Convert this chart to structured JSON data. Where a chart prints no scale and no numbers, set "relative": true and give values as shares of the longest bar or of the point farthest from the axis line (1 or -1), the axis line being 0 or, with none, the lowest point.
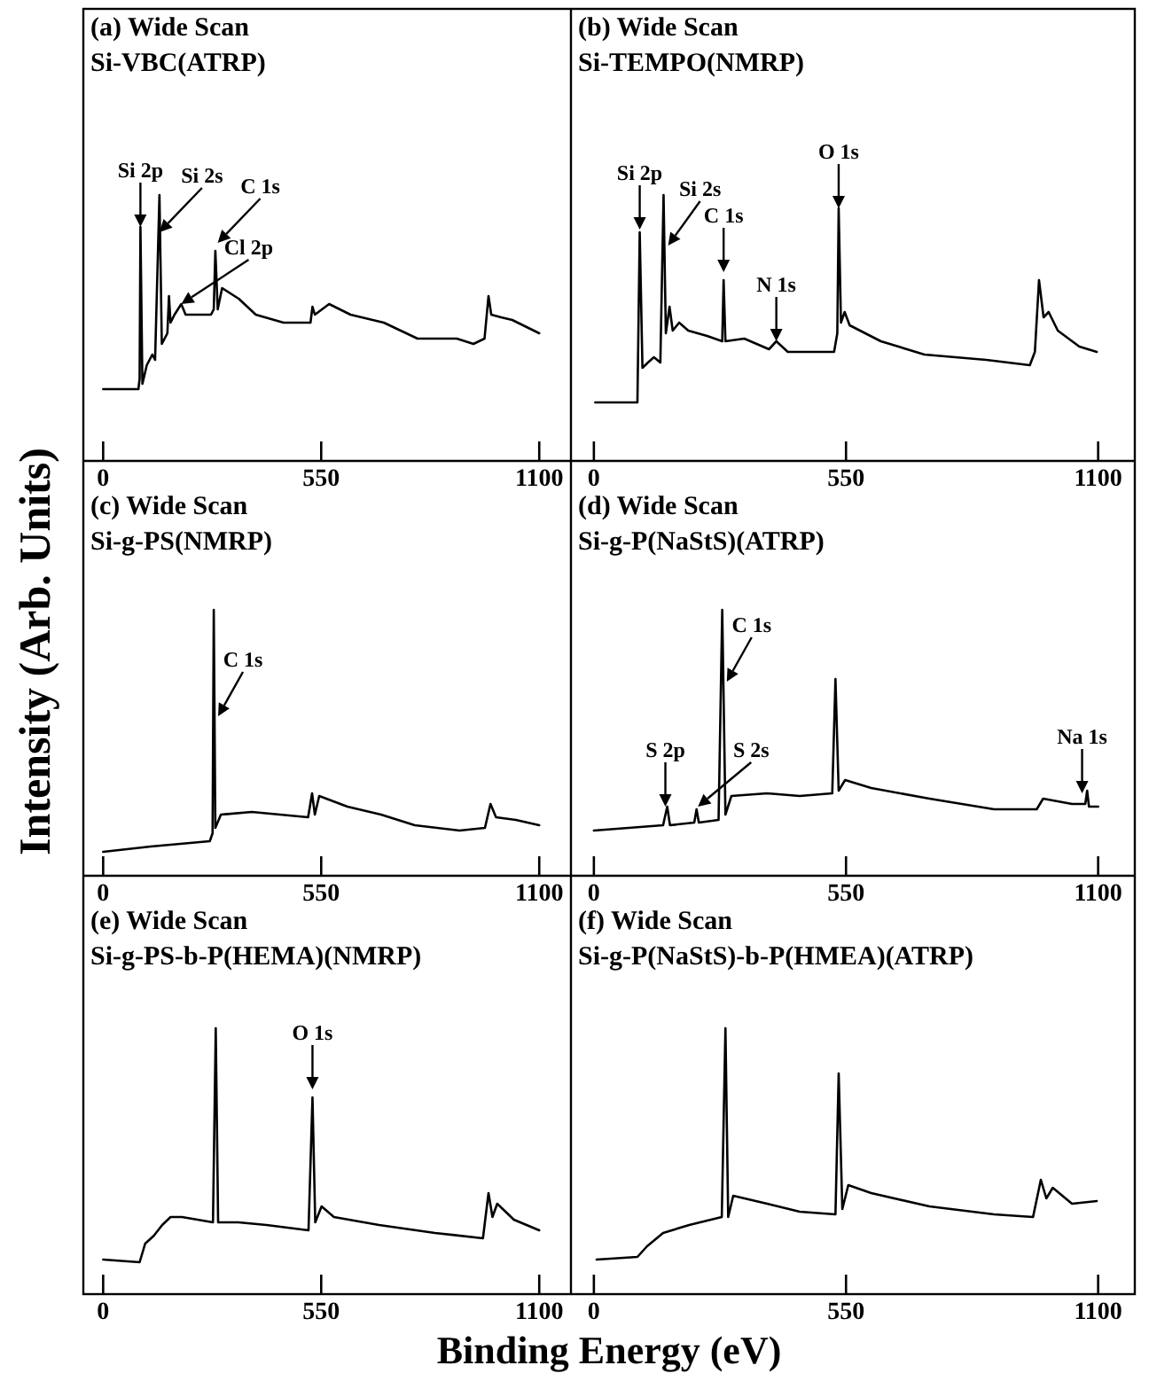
{
  "chart_data": [
    {
      "type": "line",
      "title": "(a) Wide Scan",
      "subtitle": "Si-VBC(ATRP)",
      "ylabel": "Intensity (Arb. Units)",
      "relative": true,
      "tick_labels": "x",
      "color": "#000000",
      "xlim": [
        -50,
        1180
      ],
      "xticks": [
        0,
        550,
        1100
      ],
      "x": [
        0,
        89,
        92,
        94,
        99,
        110,
        124,
        131,
        142,
        148,
        162,
        166,
        170,
        180,
        197,
        208,
        272,
        279,
        283,
        289,
        300,
        342,
        385,
        455,
        523,
        528,
        534,
        570,
        624,
        708,
        793,
        892,
        934,
        962,
        972,
        979,
        1004,
        1032,
        1100
      ],
      "values": [
        0.27,
        0.27,
        0.31,
        0.88,
        0.29,
        0.36,
        0.4,
        0.38,
        1.0,
        0.44,
        0.48,
        0.62,
        0.52,
        0.55,
        0.59,
        0.55,
        0.55,
        0.57,
        0.79,
        0.57,
        0.65,
        0.61,
        0.55,
        0.52,
        0.52,
        0.58,
        0.55,
        0.59,
        0.55,
        0.52,
        0.46,
        0.46,
        0.44,
        0.46,
        0.62,
        0.55,
        0.54,
        0.53,
        0.48
      ],
      "annotations": [
        {
          "text": "Si 2p",
          "x": 94,
          "y": 0.88
        },
        {
          "text": "Si 2s",
          "x": 142,
          "y": 0.86
        },
        {
          "text": "Cl 2p",
          "x": 197,
          "y": 0.59
        },
        {
          "text": "C 1s",
          "x": 289,
          "y": 0.82
        }
      ]
    },
    {
      "type": "line",
      "title": "(b) Wide Scan",
      "subtitle": "Si-TEMPO(NMRP)",
      "relative": true,
      "tick_labels": "x",
      "color": "#000000",
      "xlim": [
        -50,
        1180
      ],
      "xticks": [
        0,
        550,
        1100
      ],
      "x": [
        3,
        95,
        100,
        106,
        118,
        131,
        145,
        152,
        157,
        165,
        172,
        186,
        206,
        247,
        280,
        283,
        287,
        328,
        382,
        398,
        423,
        524,
        531,
        534,
        539,
        547,
        558,
        626,
        721,
        856,
        951,
        962,
        971,
        981,
        992,
        1012,
        1059,
        1097
      ],
      "values": [
        0.22,
        0.22,
        0.86,
        0.35,
        0.37,
        0.39,
        0.37,
        1.0,
        0.48,
        0.58,
        0.49,
        0.52,
        0.49,
        0.47,
        0.45,
        0.68,
        0.45,
        0.46,
        0.42,
        0.45,
        0.41,
        0.41,
        0.48,
        0.95,
        0.52,
        0.56,
        0.51,
        0.45,
        0.4,
        0.38,
        0.36,
        0.41,
        0.68,
        0.54,
        0.56,
        0.49,
        0.43,
        0.41
      ],
      "annotations": [
        {
          "text": "Si 2p",
          "x": 100,
          "y": 0.87
        },
        {
          "text": "Si 2s",
          "x": 162,
          "y": 0.81
        },
        {
          "text": "C 1s",
          "x": 283,
          "y": 0.71
        },
        {
          "text": "N 1s",
          "x": 398,
          "y": 0.45
        },
        {
          "text": "O 1s",
          "x": 534,
          "y": 0.95
        }
      ]
    },
    {
      "type": "line",
      "title": "(c) Wide Scan",
      "subtitle": "Si-g-PS(NMRP)",
      "relative": true,
      "tick_labels": "x",
      "color": "#000000",
      "xlim": [
        -50,
        1180
      ],
      "xticks": [
        0,
        550,
        1100
      ],
      "x": [
        0,
        120,
        269,
        276,
        279,
        283,
        297,
        375,
        446,
        517,
        527,
        534,
        545,
        616,
        701,
        786,
        899,
        963,
        977,
        991,
        1041,
        1100
      ],
      "values": [
        0.09,
        0.11,
        0.13,
        0.16,
        1.0,
        0.18,
        0.23,
        0.24,
        0.23,
        0.22,
        0.31,
        0.23,
        0.3,
        0.26,
        0.23,
        0.19,
        0.17,
        0.18,
        0.27,
        0.22,
        0.21,
        0.19
      ],
      "annotations": [
        {
          "text": "C 1s",
          "x": 290,
          "y": 0.6
        }
      ]
    },
    {
      "type": "line",
      "title": "(d) Wide Scan",
      "subtitle": "Si-g-P(NaStS)(ATRP)",
      "relative": true,
      "tick_labels": "x",
      "color": "#000000",
      "xlim": [
        -50,
        1180
      ],
      "xticks": [
        0,
        550,
        1100
      ],
      "x": [
        0,
        151,
        160,
        166,
        219,
        224,
        229,
        272,
        280,
        287,
        300,
        378,
        449,
        520,
        527,
        534,
        548,
        605,
        732,
        873,
        966,
        980,
        1043,
        1072,
        1076,
        1080,
        1100
      ],
      "values": [
        0.17,
        0.19,
        0.26,
        0.19,
        0.2,
        0.25,
        0.2,
        0.21,
        1.0,
        0.23,
        0.3,
        0.31,
        0.3,
        0.31,
        0.74,
        0.32,
        0.36,
        0.33,
        0.29,
        0.25,
        0.25,
        0.29,
        0.27,
        0.27,
        0.32,
        0.26,
        0.26
      ],
      "annotations": [
        {
          "text": "S 2p",
          "x": 156,
          "y": 0.26
        },
        {
          "text": "S 2s",
          "x": 227,
          "y": 0.26
        },
        {
          "text": "C 1s",
          "x": 290,
          "y": 0.73
        },
        {
          "text": "Na 1s",
          "x": 1065,
          "y": 0.31
        }
      ]
    },
    {
      "type": "line",
      "title": "(e) Wide Scan",
      "subtitle": "Si-g-PS-b-P(HEMA)(NMRP)",
      "xlabel": "Binding Energy (eV)",
      "relative": true,
      "tick_labels": "x",
      "color": "#000000",
      "xlim": [
        -50,
        1180
      ],
      "xticks": [
        0,
        550,
        1100
      ],
      "x": [
        0,
        92,
        106,
        128,
        149,
        170,
        199,
        277,
        284,
        290,
        341,
        412,
        518,
        528,
        535,
        551,
        582,
        696,
        837,
        958,
        972,
        982,
        994,
        1036,
        1100
      ],
      "values": [
        0.13,
        0.12,
        0.19,
        0.22,
        0.26,
        0.29,
        0.29,
        0.27,
        1.0,
        0.27,
        0.27,
        0.26,
        0.24,
        0.74,
        0.27,
        0.33,
        0.29,
        0.26,
        0.23,
        0.21,
        0.38,
        0.29,
        0.34,
        0.28,
        0.24
      ],
      "annotations": [
        {
          "text": "O 1s",
          "x": 528,
          "y": 0.77
        }
      ]
    },
    {
      "type": "line",
      "title": "(f) Wide Scan",
      "subtitle": "Si-g-P(NaStS)-b-P(HMEA)(ATRP)",
      "relative": true,
      "tick_labels": "x",
      "color": "#000000",
      "xlim": [
        -50,
        1180
      ],
      "xticks": [
        0,
        550,
        1100
      ],
      "x": [
        6,
        95,
        116,
        151,
        208,
        279,
        287,
        293,
        304,
        378,
        449,
        527,
        534,
        542,
        555,
        605,
        732,
        873,
        958,
        975,
        987,
        1001,
        1043,
        1097
      ],
      "values": [
        0.13,
        0.14,
        0.18,
        0.23,
        0.26,
        0.29,
        1.0,
        0.29,
        0.37,
        0.34,
        0.31,
        0.3,
        0.83,
        0.32,
        0.41,
        0.38,
        0.33,
        0.3,
        0.29,
        0.43,
        0.36,
        0.4,
        0.34,
        0.35
      ]
    }
  ]
}
